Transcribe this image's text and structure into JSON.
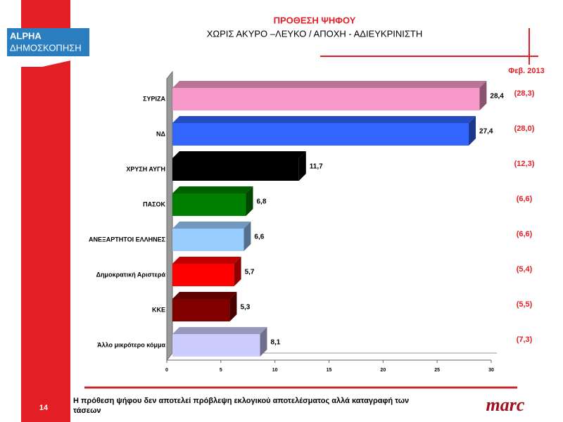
{
  "slide": {
    "logo_top": "ALPHA",
    "logo_bottom": "ΔΗΜΟΣΚΟΠΗΣΗ",
    "date": "Φεβ. 2013",
    "page_number": "14",
    "footnote": "Η πρόθεση ψήφου δεν αποτελεί πρόβλεψη εκλογικού αποτελέσματος αλλά καταγραφή των τάσεων",
    "brand": "marc"
  },
  "chart_data": {
    "type": "bar",
    "orientation": "horizontal",
    "title": "ΠΡΟΘΕΣΗ ΨΗΦΟΥ",
    "subtitle": "ΧΩΡΙΣ ΑΚΥΡΟ –ΛΕΥΚΟ / ΑΠΟΧΗ - ΑΔΙΕΥΚΡΙΝΙΣΤΗ",
    "categories": [
      "ΣΥΡΙΖΑ",
      "ΝΔ",
      "ΧΡΥΣΗ ΑΥΓΗ",
      "ΠΑΣΟΚ",
      "ΑΝΕΞΑΡΤΗΤΟΙ ΕΛΛΗΝΕΣ",
      "Δημοκρατική Αριστερά",
      "ΚΚΕ",
      "Άλλο μικρότερο κόμμα"
    ],
    "values": [
      28.4,
      27.4,
      11.7,
      6.8,
      6.6,
      5.7,
      5.3,
      8.1
    ],
    "value_labels": [
      "28,4",
      "27,4",
      "11,7",
      "6,8",
      "6,6",
      "5,7",
      "5,3",
      "8,1"
    ],
    "annotations": [
      "(28,3)",
      "(28,0)",
      "(12,3)",
      "(6,6)",
      "(6,6)",
      "(5,4)",
      "(5,5)",
      "(7,3)"
    ],
    "colors": [
      "#f799c8",
      "#3366ff",
      "#000000",
      "#008000",
      "#99ccff",
      "#ff0000",
      "#800000",
      "#ccccff"
    ],
    "xlim": [
      0,
      30
    ],
    "xticks": [
      0,
      5,
      10,
      15,
      20,
      25,
      30
    ]
  }
}
